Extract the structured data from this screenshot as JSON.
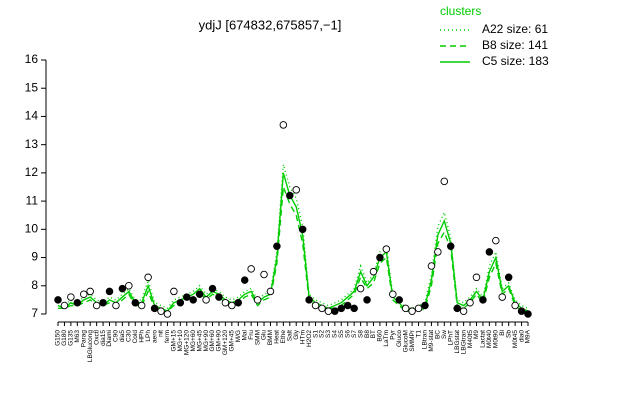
{
  "chart_data": {
    "type": "line",
    "title": "ydjJ [674832,675857,−1]",
    "legend_title": "clusters",
    "categories": [
      "G150",
      "G180",
      "G135",
      "M63",
      "Parag",
      "LBGlucong",
      "Oxctl",
      "dia15",
      "Diami",
      "C90",
      "dia5",
      "C30",
      "Cold",
      "HPh",
      "LPh",
      "aero",
      "nit",
      "ferm",
      "GM+15",
      "MG+10",
      "MG+120",
      "MG+60",
      "MG+45",
      "MG+90",
      "GM+60",
      "GM+90",
      "GM+120",
      "GM+45",
      "M/G",
      "Mal",
      "Fru",
      "SMM",
      "Glu",
      "BMM",
      "Heat",
      "Ethe",
      "Salt",
      "Gly",
      "HTm",
      "H2O2",
      "S1",
      "S2",
      "S3",
      "S4",
      "S5",
      "S6",
      "S7",
      "S8",
      "B8",
      "BT",
      "B60",
      "LaTm",
      "Pyr",
      "Gluco",
      "GlucoM",
      "SMMPr",
      "T1",
      "LBtran",
      "M9-stat",
      "BC",
      "Sw",
      "LPhT",
      "LBGstat",
      "LBGtran",
      "M40t5",
      "M9",
      "Lactat",
      "M0t40",
      "M0t90",
      "Bl",
      "Sb",
      "M0t45",
      "dia0",
      "M9A"
    ],
    "series": [
      {
        "name": "A22 size: 61",
        "color": "#00cc00",
        "dash": "1,3",
        "values": [
          7.4,
          7.3,
          7.5,
          7.4,
          7.6,
          7.7,
          7.5,
          7.4,
          7.6,
          7.5,
          7.7,
          7.9,
          7.5,
          7.5,
          8.2,
          7.4,
          7.3,
          7.2,
          7.5,
          7.6,
          7.7,
          7.8,
          8.0,
          7.7,
          7.9,
          7.8,
          7.6,
          7.5,
          7.6,
          7.8,
          7.9,
          7.5,
          7.7,
          7.8,
          9.2,
          12.3,
          11.5,
          11.1,
          10.1,
          7.7,
          7.5,
          7.4,
          7.3,
          7.4,
          7.5,
          7.7,
          7.9,
          8.7,
          8.1,
          8.4,
          9.2,
          9.4,
          7.7,
          7.5,
          7.2,
          7.2,
          7.3,
          7.4,
          8.4,
          10.1,
          10.6,
          9.7,
          7.5,
          7.4,
          7.6,
          7.9,
          7.6,
          8.7,
          9.2,
          7.9,
          8.1,
          7.5,
          7.3,
          7.2
        ]
      },
      {
        "name": "B8 size: 141",
        "color": "#00cc00",
        "dash": "6,4",
        "values": [
          7.2,
          7.2,
          7.3,
          7.3,
          7.4,
          7.5,
          7.3,
          7.3,
          7.4,
          7.3,
          7.5,
          7.7,
          7.3,
          7.3,
          7.8,
          7.2,
          7.1,
          7.1,
          7.3,
          7.4,
          7.5,
          7.6,
          7.8,
          7.5,
          7.7,
          7.6,
          7.4,
          7.3,
          7.4,
          7.6,
          7.7,
          7.3,
          7.5,
          7.6,
          8.8,
          11.5,
          10.9,
          10.5,
          9.5,
          7.5,
          7.3,
          7.2,
          7.2,
          7.2,
          7.3,
          7.5,
          7.7,
          8.3,
          7.9,
          8.1,
          8.8,
          9.0,
          7.5,
          7.3,
          7.1,
          7.1,
          7.1,
          7.2,
          8.0,
          9.5,
          9.9,
          9.3,
          7.3,
          7.2,
          7.4,
          7.7,
          7.4,
          8.3,
          8.8,
          7.7,
          7.9,
          7.3,
          7.1,
          7.1
        ]
      },
      {
        "name": "C5 size: 183",
        "color": "#00cc00",
        "dash": "none",
        "values": [
          7.3,
          7.2,
          7.4,
          7.3,
          7.5,
          7.6,
          7.4,
          7.3,
          7.5,
          7.4,
          7.6,
          7.8,
          7.4,
          7.4,
          8.0,
          7.3,
          7.2,
          7.1,
          7.4,
          7.5,
          7.6,
          7.7,
          7.9,
          7.6,
          7.8,
          7.7,
          7.5,
          7.4,
          7.5,
          7.7,
          7.8,
          7.4,
          7.6,
          7.7,
          9.0,
          12.0,
          11.2,
          10.8,
          9.8,
          7.6,
          7.4,
          7.3,
          7.2,
          7.3,
          7.4,
          7.6,
          7.8,
          8.5,
          8.0,
          8.3,
          9.0,
          9.2,
          7.6,
          7.4,
          7.1,
          7.1,
          7.2,
          7.3,
          8.2,
          9.8,
          10.3,
          9.5,
          7.4,
          7.3,
          7.5,
          7.8,
          7.5,
          8.5,
          9.0,
          7.8,
          8.0,
          7.4,
          7.2,
          7.1
        ]
      }
    ],
    "points": {
      "color": "#000000",
      "values": [
        7.5,
        7.3,
        7.6,
        7.4,
        7.7,
        7.8,
        7.3,
        7.4,
        7.8,
        7.3,
        7.9,
        8.0,
        7.4,
        7.3,
        8.3,
        7.2,
        7.1,
        7.0,
        7.8,
        7.4,
        7.6,
        7.5,
        7.7,
        7.5,
        7.9,
        7.6,
        7.4,
        7.3,
        7.4,
        8.2,
        8.6,
        7.5,
        8.4,
        7.8,
        9.4,
        13.7,
        11.2,
        11.4,
        10.0,
        7.5,
        7.3,
        7.2,
        7.1,
        7.1,
        7.2,
        7.3,
        7.2,
        7.9,
        7.5,
        8.5,
        9.0,
        9.3,
        7.7,
        7.5,
        7.2,
        7.1,
        7.2,
        7.3,
        8.7,
        9.2,
        11.7,
        9.4,
        7.2,
        7.1,
        7.4,
        8.3,
        7.5,
        9.2,
        9.6,
        7.6,
        8.3,
        7.3,
        7.1,
        7.0
      ],
      "filled": [
        true,
        false,
        false,
        true,
        false,
        false,
        false,
        true,
        true,
        false,
        true,
        false,
        true,
        false,
        false,
        true,
        false,
        false,
        false,
        true,
        true,
        true,
        true,
        false,
        true,
        true,
        false,
        false,
        true,
        true,
        false,
        false,
        false,
        false,
        true,
        false,
        true,
        false,
        true,
        true,
        false,
        false,
        false,
        true,
        true,
        true,
        true,
        false,
        true,
        false,
        true,
        false,
        false,
        true,
        false,
        false,
        false,
        true,
        false,
        false,
        false,
        true,
        true,
        false,
        false,
        false,
        true,
        true,
        false,
        false,
        true,
        false,
        true,
        true
      ]
    },
    "ylim": [
      7,
      16
    ],
    "yticks": [
      7,
      8,
      9,
      10,
      11,
      12,
      13,
      14,
      15,
      16
    ]
  }
}
